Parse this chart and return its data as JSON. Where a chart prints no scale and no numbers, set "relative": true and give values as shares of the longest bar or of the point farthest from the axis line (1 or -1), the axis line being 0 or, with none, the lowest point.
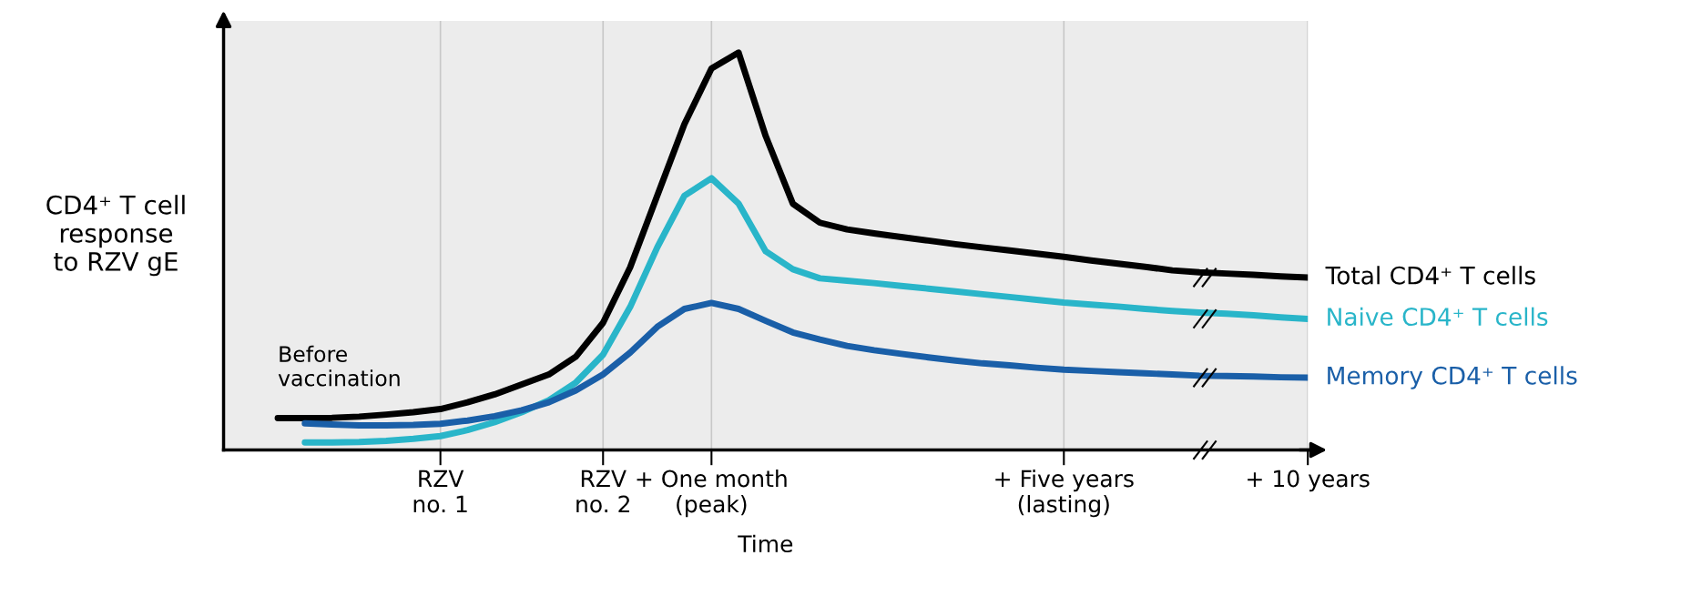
{
  "chart_data": {
    "type": "line",
    "relative": true,
    "xlabel": "Time",
    "ylabel": "CD4⁺ T cell\nresponse\nto RZV gE",
    "annotations": [
      "Before\nvaccination"
    ],
    "categories": [
      null,
      null,
      null,
      null,
      null,
      null,
      null,
      null,
      "RZV\nno. 1",
      null,
      null,
      null,
      null,
      null,
      "RZV\nno. 2",
      null,
      null,
      null,
      "+ One month\n(peak)",
      null,
      null,
      null,
      null,
      null,
      null,
      null,
      null,
      null,
      null,
      null,
      null,
      "+ Five years\n(lasting)",
      null,
      null,
      null,
      null,
      null,
      null,
      null,
      null,
      "+ 10 years"
    ],
    "grid": "x",
    "series": [
      {
        "name": "Total CD4⁺ T cells",
        "color": "#000000",
        "values": [
          null,
          null,
          0.08,
          0.08,
          0.081,
          0.084,
          0.089,
          0.095,
          0.103,
          0.12,
          0.14,
          0.165,
          0.19,
          0.235,
          0.32,
          0.46,
          0.64,
          0.82,
          0.96,
          1.0,
          0.79,
          0.62,
          0.572,
          0.555,
          0.545,
          0.536,
          0.527,
          0.518,
          0.51,
          0.502,
          0.494,
          0.486,
          0.477,
          0.469,
          0.461,
          0.452,
          0.447,
          0.444,
          0.441,
          0.437,
          0.434
        ]
      },
      {
        "name": "Naive CD4⁺ T cells",
        "color": "#29b5c9",
        "values": [
          null,
          null,
          null,
          0.019,
          0.019,
          0.02,
          0.023,
          0.028,
          0.035,
          0.05,
          0.07,
          0.095,
          0.125,
          0.17,
          0.24,
          0.36,
          0.51,
          0.64,
          0.684,
          0.62,
          0.5,
          0.455,
          0.432,
          0.426,
          0.42,
          0.413,
          0.406,
          0.399,
          0.392,
          0.385,
          0.378,
          0.371,
          0.366,
          0.361,
          0.355,
          0.35,
          0.346,
          0.343,
          0.339,
          0.334,
          0.33
        ]
      },
      {
        "name": "Memory CD4⁺ T cells",
        "color": "#1a5fa8",
        "values": [
          null,
          null,
          null,
          0.067,
          0.064,
          0.062,
          0.062,
          0.063,
          0.066,
          0.074,
          0.085,
          0.1,
          0.12,
          0.15,
          0.19,
          0.245,
          0.31,
          0.355,
          0.37,
          0.355,
          0.325,
          0.296,
          0.278,
          0.262,
          0.251,
          0.242,
          0.233,
          0.225,
          0.218,
          0.213,
          0.207,
          0.202,
          0.199,
          0.196,
          0.193,
          0.19,
          0.187,
          0.186,
          0.185,
          0.183,
          0.182
        ]
      }
    ]
  }
}
